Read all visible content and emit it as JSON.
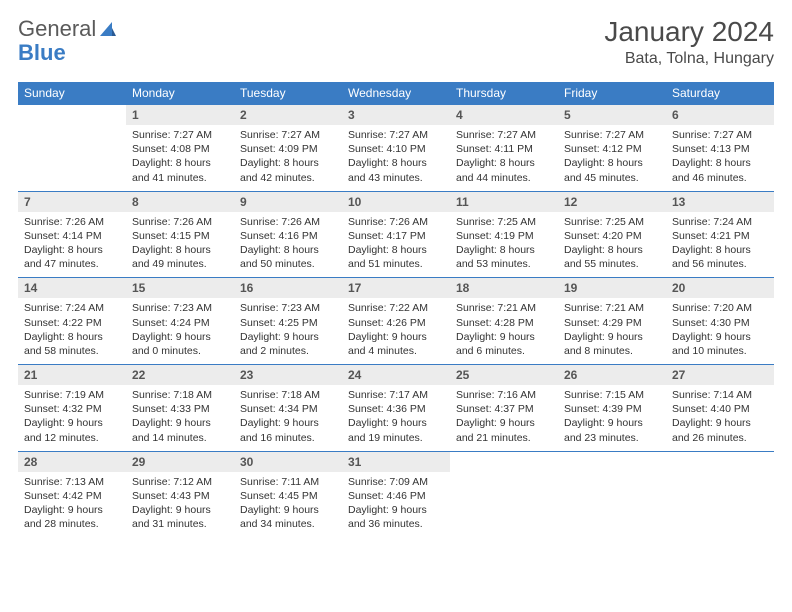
{
  "brand": {
    "part1": "General",
    "part2": "Blue"
  },
  "title": "January 2024",
  "location": "Bata, Tolna, Hungary",
  "colors": {
    "headerBg": "#3a7cc4",
    "dayHeaderBg": "#ececec",
    "text": "#333333",
    "brandGray": "#5a5a5a"
  },
  "weekdays": [
    "Sunday",
    "Monday",
    "Tuesday",
    "Wednesday",
    "Thursday",
    "Friday",
    "Saturday"
  ],
  "weeks": [
    [
      null,
      {
        "n": "1",
        "sr": "Sunrise: 7:27 AM",
        "ss": "Sunset: 4:08 PM",
        "d1": "Daylight: 8 hours",
        "d2": "and 41 minutes."
      },
      {
        "n": "2",
        "sr": "Sunrise: 7:27 AM",
        "ss": "Sunset: 4:09 PM",
        "d1": "Daylight: 8 hours",
        "d2": "and 42 minutes."
      },
      {
        "n": "3",
        "sr": "Sunrise: 7:27 AM",
        "ss": "Sunset: 4:10 PM",
        "d1": "Daylight: 8 hours",
        "d2": "and 43 minutes."
      },
      {
        "n": "4",
        "sr": "Sunrise: 7:27 AM",
        "ss": "Sunset: 4:11 PM",
        "d1": "Daylight: 8 hours",
        "d2": "and 44 minutes."
      },
      {
        "n": "5",
        "sr": "Sunrise: 7:27 AM",
        "ss": "Sunset: 4:12 PM",
        "d1": "Daylight: 8 hours",
        "d2": "and 45 minutes."
      },
      {
        "n": "6",
        "sr": "Sunrise: 7:27 AM",
        "ss": "Sunset: 4:13 PM",
        "d1": "Daylight: 8 hours",
        "d2": "and 46 minutes."
      }
    ],
    [
      {
        "n": "7",
        "sr": "Sunrise: 7:26 AM",
        "ss": "Sunset: 4:14 PM",
        "d1": "Daylight: 8 hours",
        "d2": "and 47 minutes."
      },
      {
        "n": "8",
        "sr": "Sunrise: 7:26 AM",
        "ss": "Sunset: 4:15 PM",
        "d1": "Daylight: 8 hours",
        "d2": "and 49 minutes."
      },
      {
        "n": "9",
        "sr": "Sunrise: 7:26 AM",
        "ss": "Sunset: 4:16 PM",
        "d1": "Daylight: 8 hours",
        "d2": "and 50 minutes."
      },
      {
        "n": "10",
        "sr": "Sunrise: 7:26 AM",
        "ss": "Sunset: 4:17 PM",
        "d1": "Daylight: 8 hours",
        "d2": "and 51 minutes."
      },
      {
        "n": "11",
        "sr": "Sunrise: 7:25 AM",
        "ss": "Sunset: 4:19 PM",
        "d1": "Daylight: 8 hours",
        "d2": "and 53 minutes."
      },
      {
        "n": "12",
        "sr": "Sunrise: 7:25 AM",
        "ss": "Sunset: 4:20 PM",
        "d1": "Daylight: 8 hours",
        "d2": "and 55 minutes."
      },
      {
        "n": "13",
        "sr": "Sunrise: 7:24 AM",
        "ss": "Sunset: 4:21 PM",
        "d1": "Daylight: 8 hours",
        "d2": "and 56 minutes."
      }
    ],
    [
      {
        "n": "14",
        "sr": "Sunrise: 7:24 AM",
        "ss": "Sunset: 4:22 PM",
        "d1": "Daylight: 8 hours",
        "d2": "and 58 minutes."
      },
      {
        "n": "15",
        "sr": "Sunrise: 7:23 AM",
        "ss": "Sunset: 4:24 PM",
        "d1": "Daylight: 9 hours",
        "d2": "and 0 minutes."
      },
      {
        "n": "16",
        "sr": "Sunrise: 7:23 AM",
        "ss": "Sunset: 4:25 PM",
        "d1": "Daylight: 9 hours",
        "d2": "and 2 minutes."
      },
      {
        "n": "17",
        "sr": "Sunrise: 7:22 AM",
        "ss": "Sunset: 4:26 PM",
        "d1": "Daylight: 9 hours",
        "d2": "and 4 minutes."
      },
      {
        "n": "18",
        "sr": "Sunrise: 7:21 AM",
        "ss": "Sunset: 4:28 PM",
        "d1": "Daylight: 9 hours",
        "d2": "and 6 minutes."
      },
      {
        "n": "19",
        "sr": "Sunrise: 7:21 AM",
        "ss": "Sunset: 4:29 PM",
        "d1": "Daylight: 9 hours",
        "d2": "and 8 minutes."
      },
      {
        "n": "20",
        "sr": "Sunrise: 7:20 AM",
        "ss": "Sunset: 4:30 PM",
        "d1": "Daylight: 9 hours",
        "d2": "and 10 minutes."
      }
    ],
    [
      {
        "n": "21",
        "sr": "Sunrise: 7:19 AM",
        "ss": "Sunset: 4:32 PM",
        "d1": "Daylight: 9 hours",
        "d2": "and 12 minutes."
      },
      {
        "n": "22",
        "sr": "Sunrise: 7:18 AM",
        "ss": "Sunset: 4:33 PM",
        "d1": "Daylight: 9 hours",
        "d2": "and 14 minutes."
      },
      {
        "n": "23",
        "sr": "Sunrise: 7:18 AM",
        "ss": "Sunset: 4:34 PM",
        "d1": "Daylight: 9 hours",
        "d2": "and 16 minutes."
      },
      {
        "n": "24",
        "sr": "Sunrise: 7:17 AM",
        "ss": "Sunset: 4:36 PM",
        "d1": "Daylight: 9 hours",
        "d2": "and 19 minutes."
      },
      {
        "n": "25",
        "sr": "Sunrise: 7:16 AM",
        "ss": "Sunset: 4:37 PM",
        "d1": "Daylight: 9 hours",
        "d2": "and 21 minutes."
      },
      {
        "n": "26",
        "sr": "Sunrise: 7:15 AM",
        "ss": "Sunset: 4:39 PM",
        "d1": "Daylight: 9 hours",
        "d2": "and 23 minutes."
      },
      {
        "n": "27",
        "sr": "Sunrise: 7:14 AM",
        "ss": "Sunset: 4:40 PM",
        "d1": "Daylight: 9 hours",
        "d2": "and 26 minutes."
      }
    ],
    [
      {
        "n": "28",
        "sr": "Sunrise: 7:13 AM",
        "ss": "Sunset: 4:42 PM",
        "d1": "Daylight: 9 hours",
        "d2": "and 28 minutes."
      },
      {
        "n": "29",
        "sr": "Sunrise: 7:12 AM",
        "ss": "Sunset: 4:43 PM",
        "d1": "Daylight: 9 hours",
        "d2": "and 31 minutes."
      },
      {
        "n": "30",
        "sr": "Sunrise: 7:11 AM",
        "ss": "Sunset: 4:45 PM",
        "d1": "Daylight: 9 hours",
        "d2": "and 34 minutes."
      },
      {
        "n": "31",
        "sr": "Sunrise: 7:09 AM",
        "ss": "Sunset: 4:46 PM",
        "d1": "Daylight: 9 hours",
        "d2": "and 36 minutes."
      },
      null,
      null,
      null
    ]
  ]
}
